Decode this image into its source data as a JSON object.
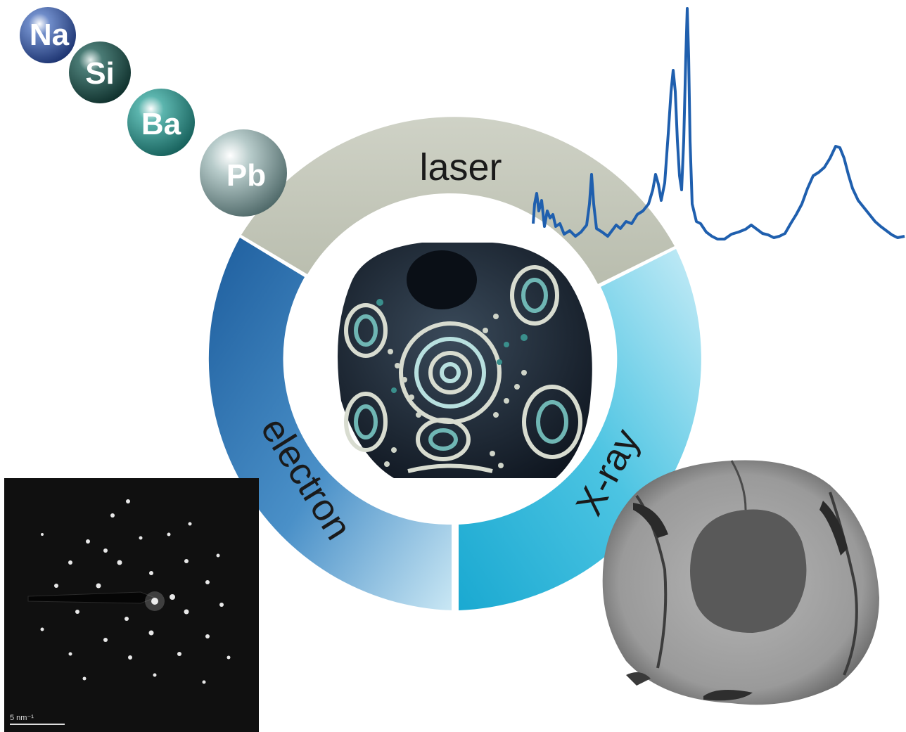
{
  "ring": {
    "top_label": "laser",
    "left_label": "electron",
    "right_label": "X-ray"
  },
  "elements": [
    "Na",
    "Si",
    "Ba",
    "Pb"
  ],
  "diffraction": {
    "scale_label": "5 nm⁻¹"
  },
  "colors": {
    "laser_segment": "#c2c6b8",
    "electron_dark": "#1e5e9e",
    "electron_light": "#bfe1f1",
    "xray_dark": "#21b4d6",
    "xray_light": "#c7ecf7",
    "spectrum_line": "#1f5fae",
    "na_sphere": "#2d4d8f",
    "si_sphere": "#1d4d47",
    "ba_sphere": "#2f8a84",
    "pb_sphere": "#8aa5a5"
  }
}
